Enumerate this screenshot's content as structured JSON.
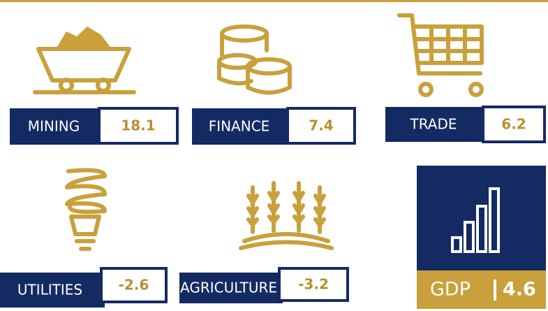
{
  "sectors": [
    {
      "name": "MINING",
      "value": 18.1
    },
    {
      "name": "FINANCE",
      "value": 7.4
    },
    {
      "name": "TRADE",
      "value": 6.2
    },
    {
      "name": "UTILITIES",
      "value": -2.6
    },
    {
      "name": "AGRICULTURE",
      "value": -3.2
    }
  ],
  "gdp": {
    "label": "GDP",
    "value": 4.6
  }
}
